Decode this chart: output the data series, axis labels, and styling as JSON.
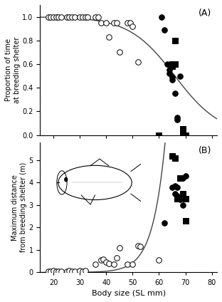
{
  "panel_A": {
    "label": "(A)",
    "ylabel": "Proportion of time\nat breeding shelter",
    "open_circles": [
      [
        18,
        1.0
      ],
      [
        19,
        1.0
      ],
      [
        20,
        1.0
      ],
      [
        21,
        1.0
      ],
      [
        22,
        1.0
      ],
      [
        23,
        1.0
      ],
      [
        25,
        1.0
      ],
      [
        26,
        1.0
      ],
      [
        27,
        1.0
      ],
      [
        28,
        1.0
      ],
      [
        30,
        1.0
      ],
      [
        31,
        1.0
      ],
      [
        32,
        1.0
      ],
      [
        33,
        1.0
      ],
      [
        36,
        1.0
      ],
      [
        37,
        1.0
      ],
      [
        38,
        0.95
      ],
      [
        40,
        0.95
      ],
      [
        41,
        0.83
      ],
      [
        43,
        0.95
      ],
      [
        44,
        0.95
      ],
      [
        45,
        0.7
      ],
      [
        48,
        0.95
      ],
      [
        49,
        0.95
      ],
      [
        50,
        0.92
      ],
      [
        52,
        0.62
      ]
    ],
    "filled_circles": [
      [
        61,
        1.0
      ],
      [
        62,
        0.89
      ],
      [
        63,
        0.6
      ],
      [
        64,
        0.55
      ],
      [
        64,
        0.52
      ],
      [
        65,
        0.49
      ],
      [
        65,
        0.47
      ],
      [
        66,
        0.35
      ],
      [
        67,
        0.15
      ],
      [
        67,
        0.13
      ],
      [
        68,
        0.5
      ]
    ],
    "filled_squares": [
      [
        60,
        0.0
      ],
      [
        65,
        0.6
      ],
      [
        65,
        0.58
      ],
      [
        66,
        0.8
      ],
      [
        66,
        0.6
      ],
      [
        69,
        0.05
      ],
      [
        69,
        0.02
      ],
      [
        70,
        0.0
      ]
    ],
    "ylim": [
      0,
      1.1
    ],
    "yticks": [
      0.0,
      0.2,
      0.4,
      0.6,
      0.8,
      1.0
    ],
    "curve_k": 0.115,
    "curve_x0": 66
  },
  "panel_B": {
    "label": "(B)",
    "ylabel": "Maximum distance\nfrom breeding shelter (m)",
    "open_circles": [
      [
        18,
        0.05
      ],
      [
        19,
        0.05
      ],
      [
        20,
        0.07
      ],
      [
        21,
        0.05
      ],
      [
        22,
        0.06
      ],
      [
        23,
        0.05
      ],
      [
        25,
        0.05
      ],
      [
        26,
        0.07
      ],
      [
        27,
        0.06
      ],
      [
        28,
        0.05
      ],
      [
        30,
        0.07
      ],
      [
        31,
        0.05
      ],
      [
        32,
        0.08
      ],
      [
        36,
        0.35
      ],
      [
        38,
        0.55
      ],
      [
        39,
        0.6
      ],
      [
        40,
        0.45
      ],
      [
        41,
        0.4
      ],
      [
        43,
        0.35
      ],
      [
        44,
        0.65
      ],
      [
        45,
        1.1
      ],
      [
        48,
        0.35
      ],
      [
        50,
        0.35
      ],
      [
        52,
        1.2
      ],
      [
        53,
        1.15
      ],
      [
        60,
        0.55
      ]
    ],
    "filled_circles": [
      [
        62,
        2.2
      ],
      [
        65,
        3.8
      ],
      [
        66,
        3.5
      ],
      [
        66,
        3.85
      ],
      [
        67,
        3.8
      ],
      [
        67,
        3.4
      ],
      [
        68,
        3.3
      ],
      [
        68,
        3.25
      ],
      [
        69,
        3.0
      ],
      [
        69,
        4.2
      ],
      [
        70,
        4.3
      ]
    ],
    "filled_squares": [
      [
        65,
        5.2
      ],
      [
        66,
        5.1
      ],
      [
        67,
        3.3
      ],
      [
        68,
        4.2
      ],
      [
        69,
        3.5
      ],
      [
        70,
        3.3
      ],
      [
        70,
        2.3
      ]
    ],
    "ylim": [
      0,
      5.8
    ],
    "yticks": [
      0,
      1,
      2,
      3,
      4,
      5
    ],
    "curve_a": 1.2e-05,
    "curve_b": 0.21
  },
  "xlim": [
    15,
    82
  ],
  "xticks": [
    20,
    30,
    40,
    50,
    60,
    70,
    80
  ],
  "xlabel": "Body size (SL mm)",
  "bg_color": "#ffffff",
  "marker_size": 5,
  "curve_color": "#444444"
}
